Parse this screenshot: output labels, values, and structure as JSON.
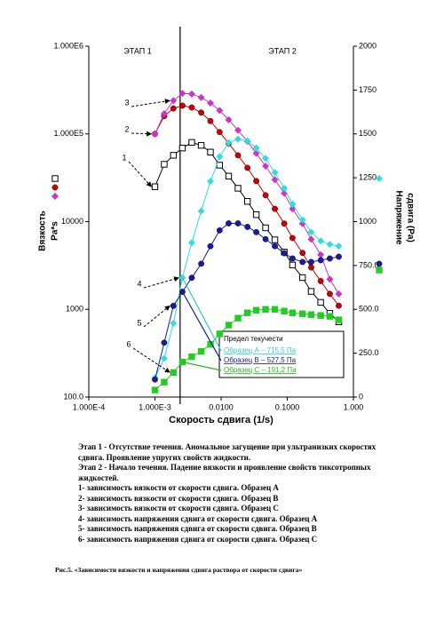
{
  "chart_data": {
    "type": "line",
    "x": [
      0.001,
      0.00138,
      0.0019,
      0.0026,
      0.0036,
      0.005,
      0.0069,
      0.0095,
      0.013,
      0.018,
      0.025,
      0.034,
      0.047,
      0.065,
      0.09,
      0.12,
      0.17,
      0.23,
      0.32,
      0.44,
      0.6
    ],
    "xscale": "log",
    "yscale": "log",
    "xlim": [
      0.0001,
      1
    ],
    "ylim": [
      100,
      1000000
    ],
    "y2lim": [
      0,
      2000
    ],
    "xticks": [
      {
        "value": 0.0001,
        "label": "1.000E-4"
      },
      {
        "value": 0.001,
        "label": "1.000E-3"
      },
      {
        "value": 0.01,
        "label": "0.0100"
      },
      {
        "value": 0.1,
        "label": "0.1000"
      },
      {
        "value": 1,
        "label": "1.000"
      }
    ],
    "yticks": [
      {
        "value": 100,
        "label": "100.0"
      },
      1000,
      10000,
      {
        "value": 100000,
        "label": "1.000E5"
      },
      {
        "value": 1000000,
        "label": "1.000E6"
      }
    ],
    "y2ticks": [
      0,
      {
        "value": 250,
        "label": "250.0"
      },
      {
        "value": 500,
        "label": "500.0"
      },
      {
        "value": 750,
        "label": "750.0"
      },
      1000,
      1250,
      1500,
      1750,
      2000
    ],
    "xlabel": "Скорость сдвига (1/s)",
    "ylabel": [
      "Вязкость",
      "Pa*s"
    ],
    "y2label": [
      "Напряжение",
      "сдвига (Pa)"
    ],
    "stage_labels": [
      "ЭТАП 1",
      "ЭТАП 2"
    ],
    "stage_boundary": 0.0024,
    "series": [
      {
        "name": "1",
        "color": "#000000",
        "marker": "square",
        "values": [
          25000,
          45000,
          57000,
          69000,
          80000,
          74000,
          62000,
          44000,
          33000,
          24000,
          17000,
          12000,
          8500,
          6200,
          4500,
          3200,
          2300,
          1600,
          1200,
          900,
          720
        ]
      },
      {
        "name": "2",
        "color": "#cc0000",
        "marker": "circle",
        "values": [
          100000,
          160000,
          195000,
          210000,
          200000,
          175000,
          140000,
          105000,
          78000,
          57000,
          41000,
          29000,
          20000,
          14000,
          9500,
          6500,
          4400,
          3000,
          2100,
          1500,
          1100
        ]
      },
      {
        "name": "3",
        "color": "#cc33cc",
        "marker": "diamond",
        "values": [
          100000,
          170000,
          240000,
          290000,
          285000,
          260000,
          225000,
          185000,
          145000,
          110000,
          82000,
          60000,
          43000,
          30000,
          21000,
          14000,
          9500,
          6300,
          4200,
          2200,
          1500
        ]
      },
      {
        "name": "4",
        "color": "#33dddd",
        "marker": "diamond",
        "axis": "y2",
        "values": [
          110,
          220,
          420,
          680,
          880,
          1060,
          1230,
          1370,
          1450,
          1470,
          1460,
          1420,
          1360,
          1280,
          1190,
          1100,
          1010,
          940,
          890,
          870,
          860
        ]
      },
      {
        "name": "5",
        "color": "#1a1aa0",
        "marker": "circle",
        "axis": "y2",
        "values": [
          100,
          310,
          520,
          600,
          680,
          760,
          860,
          950,
          990,
          990,
          970,
          940,
          900,
          860,
          820,
          790,
          770,
          770,
          780,
          790,
          800
        ]
      },
      {
        "name": "6",
        "color": "#22cc22",
        "marker": "square",
        "axis": "y2",
        "values": [
          40,
          85,
          140,
          200,
          230,
          260,
          300,
          360,
          410,
          450,
          480,
          495,
          500,
          500,
          490,
          480,
          475,
          470,
          465,
          460,
          440
        ]
      }
    ],
    "yield_box": {
      "title": "Предел текучести",
      "items": [
        {
          "text": "Образец А – 715,5 Па",
          "color": "#33cccc"
        },
        {
          "text": "Образец В – 527,5 Па",
          "color": "#1a1aa0"
        },
        {
          "text": "Образец С – 191,2 Па",
          "color": "#22bb22"
        }
      ]
    }
  },
  "notes": [
    "Этап 1 - Отсутствие течения. Аномальное загущение при ультранизких скоростях сдвига. Проявление упругих свойств жидкости.",
    "Этап 2 - Начало течения. Падение вязкости и проявление свойств тиксотропных жидкостей.",
    "1- зависимость вязкости от скорости сдвига. Образец А",
    "2- зависимость вязкости от скорости сдвига. Образец В",
    "3- зависимость вязкости от скорости сдвига. Образец С",
    "4- зависимость напряжения сдвига от скорости сдвига. Образец А",
    "5- зависимость напряжения сдвига от скорости сдвига. Образец В",
    "6- зависимость напряжения сдвига от скорости сдвига. Образец С"
  ],
  "caption": "Рис.5. «Зависимости вязкости и напряжения сдвига раствора от скорости сдвига»"
}
